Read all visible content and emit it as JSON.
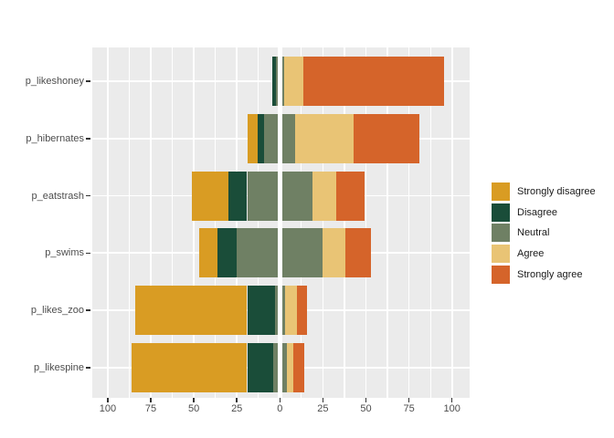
{
  "figure": {
    "background": "#FFFFFF",
    "panel_background": "#EBEBEB",
    "gridline_color": "#FFFFFF",
    "axis_text_color": "#4D4D4D",
    "tick_mark_color": "#333333",
    "legend_text_color": "#1A1A1A"
  },
  "chart_data": {
    "type": "bar",
    "subtype": "diverging_stacked_likert",
    "orientation": "horizontal",
    "title": "",
    "xlabel": "",
    "ylabel": "",
    "categories": [
      "p_likeshoney",
      "p_hibernates",
      "p_eatstrash",
      "p_swims",
      "p_likes_zoo",
      "p_likespine"
    ],
    "levels": [
      "Strongly disagree",
      "Disagree",
      "Neutral",
      "Agree",
      "Strongly agree"
    ],
    "series": [
      {
        "name": "Strongly disagree",
        "values": [
          0,
          6,
          21,
          11,
          65,
          67
        ]
      },
      {
        "name": "Disagree",
        "values": [
          2,
          4,
          11,
          11,
          16,
          15
        ]
      },
      {
        "name": "Neutral",
        "values": [
          5,
          18,
          38,
          50,
          6,
          8
        ]
      },
      {
        "name": "Agree",
        "values": [
          11,
          34,
          14,
          13,
          7,
          4
        ]
      },
      {
        "name": "Strongly agree",
        "values": [
          82,
          38,
          16,
          15,
          6,
          6
        ]
      }
    ],
    "colors": {
      "Strongly disagree": "#D99C23",
      "Disagree": "#1A4D39",
      "Neutral": "#6F8064",
      "Agree": "#E9C475",
      "Strongly agree": "#D5642A"
    },
    "values_are": "percent_of_responses",
    "neutral_split_at_zero": true,
    "axis_x": {
      "min": -100,
      "max": 100,
      "major_ticks": [
        -100,
        -75,
        -50,
        -25,
        0,
        25,
        50,
        75,
        100
      ],
      "tick_labels": [
        "100",
        "75",
        "50",
        "25",
        "0",
        "25",
        "50",
        "75",
        "100"
      ],
      "minor_ticks": [
        -87.5,
        -62.5,
        -37.5,
        -12.5,
        12.5,
        37.5,
        62.5,
        87.5
      ],
      "grid": true
    },
    "legend_position": "right",
    "legend": {
      "items": [
        {
          "label": "Strongly disagree",
          "color": "#D99C23"
        },
        {
          "label": "Disagree",
          "color": "#1A4D39"
        },
        {
          "label": "Neutral",
          "color": "#6F8064"
        },
        {
          "label": "Agree",
          "color": "#E9C475"
        },
        {
          "label": "Strongly agree",
          "color": "#D5642A"
        }
      ]
    }
  }
}
